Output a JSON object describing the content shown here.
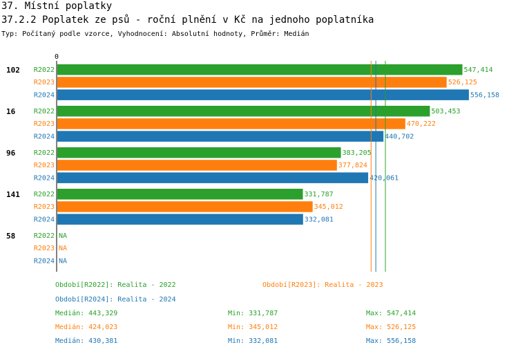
{
  "header": {
    "title": "37. Místní poplatky",
    "subtitle": "37.2.2 Poplatek ze psů - roční plnění v Kč na jednoho poplatníka",
    "type_line": "Typ: Počítaný podle vzorce, Vyhodnocení: Absolutní hodnoty, Průměr: Medián"
  },
  "colors": {
    "R2022": "#2ca02c",
    "R2023": "#ff7f0e",
    "R2024": "#1f77b4"
  },
  "chart_data": {
    "type": "bar",
    "orientation": "horizontal",
    "axis_zero_label": "0",
    "xlim": [
      0,
      560000
    ],
    "groups": [
      "102",
      "16",
      "96",
      "141",
      "58"
    ],
    "series": [
      {
        "name": "R2022",
        "color": "#2ca02c",
        "values": [
          547414,
          503453,
          383205,
          331787,
          null
        ],
        "labels": [
          "547,414",
          "503,453",
          "383,205",
          "331,787",
          "NA"
        ]
      },
      {
        "name": "R2023",
        "color": "#ff7f0e",
        "values": [
          526125,
          470222,
          377824,
          345012,
          null
        ],
        "labels": [
          "526,125",
          "470,222",
          "377,824",
          "345,012",
          "NA"
        ]
      },
      {
        "name": "R2024",
        "color": "#1f77b4",
        "values": [
          556158,
          440702,
          420061,
          332081,
          null
        ],
        "labels": [
          "556,158",
          "440,702",
          "420,061",
          "332,081",
          "NA"
        ]
      }
    ],
    "median_lines": [
      {
        "series": "R2022",
        "value": 443329
      },
      {
        "series": "R2023",
        "value": 424023
      },
      {
        "series": "R2024",
        "value": 430381
      }
    ]
  },
  "legend": {
    "items": [
      {
        "text": "Období[R2022]: Realita - 2022",
        "color": "#2ca02c"
      },
      {
        "text": "Období[R2023]: Realita - 2023",
        "color": "#ff7f0e"
      },
      {
        "text": "Období[R2024]: Realita - 2024",
        "color": "#1f77b4"
      }
    ],
    "stats": [
      {
        "median": "Medián: 443,329",
        "min": "Min: 331,787",
        "max": "Max: 547,414",
        "color": "#2ca02c"
      },
      {
        "median": "Medián: 424,023",
        "min": "Min: 345,012",
        "max": "Max: 526,125",
        "color": "#ff7f0e"
      },
      {
        "median": "Medián: 430,381",
        "min": "Min: 332,081",
        "max": "Max: 556,158",
        "color": "#1f77b4"
      }
    ]
  }
}
